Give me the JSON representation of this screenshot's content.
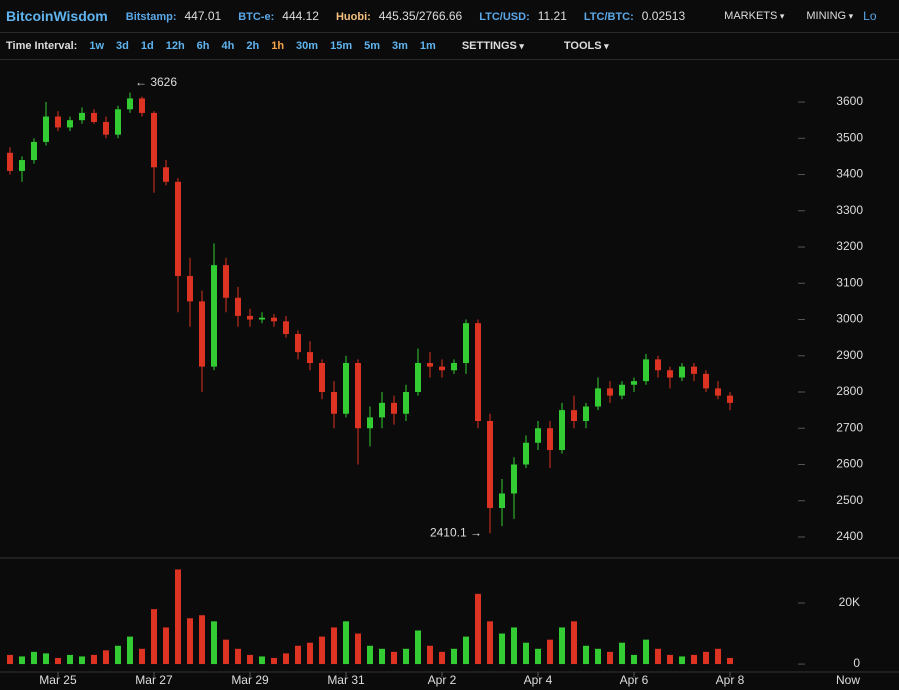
{
  "header": {
    "brand": "BitcoinWisdom",
    "tickers": [
      {
        "name": "Bitstamp:",
        "value": "447.01"
      },
      {
        "name": "BTC-e:",
        "value": "444.12"
      },
      {
        "name": "Huobi:",
        "value": "445.35/2766.66"
      },
      {
        "name": "LTC/USD:",
        "value": "11.21"
      },
      {
        "name": "LTC/BTC:",
        "value": "0.02513"
      }
    ],
    "menus": [
      "MARKETS",
      "MINING"
    ],
    "login": "Lo"
  },
  "toolbar": {
    "label": "Time Interval:",
    "intervals": [
      "1w",
      "3d",
      "1d",
      "12h",
      "6h",
      "4h",
      "2h",
      "1h",
      "30m",
      "15m",
      "5m",
      "3m",
      "1m"
    ],
    "active": "1h",
    "menus": [
      "SETTINGS",
      "TOOLS"
    ]
  },
  "chart_data": [
    {
      "type": "candlestick",
      "up_color": "#33cc33",
      "down_color": "#dd3322",
      "x": [
        0,
        0.25,
        0.5,
        0.75,
        1,
        1.25,
        1.5,
        1.75,
        2,
        2.25,
        2.5,
        2.75,
        3,
        3.25,
        3.5,
        3.75,
        4,
        4.25,
        4.5,
        4.75,
        5,
        5.25,
        5.5,
        5.75,
        6,
        6.25,
        6.5,
        6.75,
        7,
        7.25,
        7.5,
        7.75,
        8,
        8.25,
        8.5,
        8.75,
        9,
        9.25,
        9.5,
        9.75,
        10,
        10.25,
        10.5,
        10.75,
        11,
        11.25,
        11.5,
        11.75,
        12,
        12.25,
        12.5,
        12.75,
        13,
        13.25,
        13.5,
        13.75,
        14,
        14.25,
        14.5,
        14.75,
        15
      ],
      "open": [
        3460,
        3410,
        3440,
        3490,
        3560,
        3530,
        3550,
        3570,
        3545,
        3510,
        3580,
        3610,
        3570,
        3420,
        3380,
        3120,
        3050,
        2870,
        3150,
        3060,
        3010,
        3000,
        3005,
        2995,
        2960,
        2910,
        2880,
        2800,
        2740,
        2880,
        2700,
        2730,
        2770,
        2740,
        2800,
        2880,
        2870,
        2860,
        2880,
        2990,
        2720,
        2480,
        2520,
        2600,
        2660,
        2700,
        2640,
        2750,
        2720,
        2760,
        2810,
        2790,
        2820,
        2830,
        2890,
        2860,
        2840,
        2870,
        2850,
        2810,
        2790
      ],
      "high": [
        3475,
        3450,
        3500,
        3600,
        3575,
        3560,
        3585,
        3580,
        3560,
        3590,
        3626,
        3615,
        3575,
        3440,
        3390,
        3170,
        3080,
        3210,
        3170,
        3090,
        3030,
        3020,
        3015,
        3010,
        2970,
        2940,
        2890,
        2830,
        2900,
        2890,
        2760,
        2800,
        2790,
        2820,
        2920,
        2910,
        2890,
        2890,
        3000,
        3000,
        2740,
        2560,
        2620,
        2680,
        2720,
        2720,
        2770,
        2790,
        2770,
        2840,
        2830,
        2830,
        2840,
        2905,
        2900,
        2870,
        2880,
        2880,
        2860,
        2830,
        2800
      ],
      "low": [
        3400,
        3380,
        3430,
        3480,
        3520,
        3520,
        3540,
        3540,
        3500,
        3500,
        3570,
        3560,
        3350,
        3370,
        3020,
        2980,
        2800,
        2860,
        3020,
        2980,
        2980,
        2990,
        2980,
        2950,
        2890,
        2860,
        2780,
        2700,
        2730,
        2600,
        2650,
        2700,
        2710,
        2720,
        2790,
        2840,
        2840,
        2850,
        2850,
        2700,
        2410.1,
        2430,
        2450,
        2590,
        2640,
        2590,
        2630,
        2700,
        2700,
        2750,
        2770,
        2780,
        2800,
        2820,
        2840,
        2810,
        2830,
        2830,
        2800,
        2780,
        2750
      ],
      "close": [
        3410,
        3440,
        3490,
        3560,
        3530,
        3550,
        3570,
        3545,
        3510,
        3580,
        3610,
        3570,
        3420,
        3380,
        3120,
        3050,
        2870,
        3150,
        3060,
        3010,
        3000,
        3005,
        2995,
        2960,
        2910,
        2880,
        2800,
        2740,
        2880,
        2700,
        2730,
        2770,
        2740,
        2800,
        2880,
        2870,
        2860,
        2880,
        2990,
        2720,
        2480,
        2520,
        2600,
        2660,
        2700,
        2640,
        2750,
        2720,
        2760,
        2810,
        2790,
        2820,
        2830,
        2890,
        2860,
        2840,
        2870,
        2850,
        2810,
        2790,
        2770
      ],
      "xlim": [
        -0.208,
        16.458
      ],
      "xticks": [
        {
          "value": 1,
          "label": "Mar 25"
        },
        {
          "value": 3,
          "label": "Mar 27"
        },
        {
          "value": 5,
          "label": "Mar 29"
        },
        {
          "value": 7,
          "label": "Mar 31"
        },
        {
          "value": 9,
          "label": "Apr 2"
        },
        {
          "value": 11,
          "label": "Apr 4"
        },
        {
          "value": 13,
          "label": "Apr 6"
        },
        {
          "value": 15,
          "label": "Apr 8"
        }
      ],
      "x_end_label": "Now",
      "ylim": [
        2342,
        3716
      ],
      "yticks": [
        2400,
        2500,
        2600,
        2700,
        2800,
        2900,
        3000,
        3100,
        3200,
        3300,
        3400,
        3500,
        3600
      ],
      "annotations": [
        {
          "label": "← 3626",
          "value": 3626
        },
        {
          "label": "2410.1 →",
          "value": 2410.1
        }
      ]
    },
    {
      "type": "volume",
      "values": [
        3000,
        2500,
        4000,
        3500,
        2000,
        3000,
        2500,
        3000,
        4500,
        6000,
        9000,
        5000,
        18000,
        12000,
        31000,
        15000,
        16000,
        14000,
        8000,
        5000,
        3000,
        2500,
        2000,
        3500,
        6000,
        7000,
        9000,
        12000,
        14000,
        10000,
        6000,
        5000,
        4000,
        5000,
        11000,
        6000,
        4000,
        5000,
        9000,
        23000,
        14000,
        10000,
        12000,
        7000,
        5000,
        8000,
        12000,
        14000,
        6000,
        5000,
        4000,
        7000,
        3000,
        8000,
        5000,
        3000,
        2500,
        3000,
        4000,
        5000,
        2000
      ],
      "ylim": [
        -2600,
        34100
      ],
      "yticks": [
        0,
        {
          "value": 20000,
          "label": "20K"
        }
      ]
    }
  ]
}
